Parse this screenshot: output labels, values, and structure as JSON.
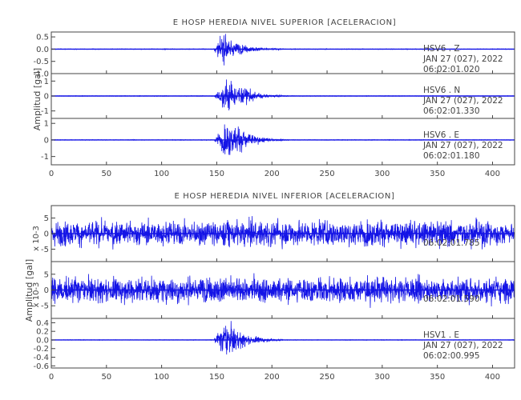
{
  "chart_data": [
    {
      "type": "line",
      "title": "E HOSP HEREDIA NIVEL SUPERIOR [ACELERACION]",
      "ylabel": "Amplitud [gal]",
      "xlabel": "",
      "xlim": [
        0,
        420
      ],
      "xticks": [
        0,
        50,
        100,
        150,
        200,
        250,
        300,
        350,
        400
      ],
      "grid": false,
      "panels": [
        {
          "station": "HSV6 . Z",
          "date": "JAN 27 (027), 2022",
          "time": "06:02:01.020",
          "ylim": [
            -1.0,
            0.7
          ],
          "yticks": [
            "0.5",
            "0.0",
            "-0.5",
            "-1.0"
          ],
          "ytick_values": [
            0.5,
            0.0,
            -0.5,
            -1.0
          ],
          "noise_amplitude": 0.02,
          "event": [
            {
              "t": 148,
              "amp": 0.1
            },
            {
              "t": 153,
              "amp": 0.45
            },
            {
              "t": 157,
              "amp": 0.65
            },
            {
              "t": 162,
              "amp": 0.55
            },
            {
              "t": 168,
              "amp": 0.3
            },
            {
              "t": 178,
              "amp": 0.15
            },
            {
              "t": 192,
              "amp": 0.06
            },
            {
              "t": 210,
              "amp": 0.02
            }
          ]
        },
        {
          "station": "HSV6 . N",
          "date": "JAN 27 (027), 2022",
          "time": "06:02:01.330",
          "ylim": [
            -1.5,
            1.5
          ],
          "yticks": [
            "1",
            "0",
            "-1"
          ],
          "ytick_values": [
            1,
            0,
            -1
          ],
          "noise_amplitude": 0.03,
          "event": [
            {
              "t": 148,
              "amp": 0.1
            },
            {
              "t": 154,
              "amp": 0.6
            },
            {
              "t": 159,
              "amp": 1.3
            },
            {
              "t": 165,
              "amp": 1.0
            },
            {
              "t": 172,
              "amp": 0.7
            },
            {
              "t": 180,
              "amp": 0.5
            },
            {
              "t": 195,
              "amp": 0.12
            },
            {
              "t": 215,
              "amp": 0.03
            }
          ]
        },
        {
          "station": "HSV6 . E",
          "date": "JAN 27 (027), 2022",
          "time": "06:02:01.180",
          "ylim": [
            -1.5,
            1.3
          ],
          "yticks": [
            "1",
            "0",
            "-1"
          ],
          "ytick_values": [
            1,
            0,
            -1
          ],
          "noise_amplitude": 0.03,
          "event": [
            {
              "t": 148,
              "amp": 0.1
            },
            {
              "t": 154,
              "amp": 0.7
            },
            {
              "t": 160,
              "amp": 1.2
            },
            {
              "t": 166,
              "amp": 0.9
            },
            {
              "t": 175,
              "amp": 0.75
            },
            {
              "t": 185,
              "amp": 0.3
            },
            {
              "t": 200,
              "amp": 0.08
            },
            {
              "t": 215,
              "amp": 0.03
            }
          ]
        }
      ]
    },
    {
      "type": "line",
      "title": "E HOSP HEREDIA NIVEL INFERIOR [ACELERACION]",
      "ylabel": "Amplitud [gal]",
      "xlabel": "",
      "xlim": [
        0,
        420
      ],
      "xticks": [
        0,
        50,
        100,
        150,
        200,
        250,
        300,
        350,
        400
      ],
      "grid": false,
      "panels": [
        {
          "station": "",
          "date": "",
          "time": "06:02:01.785",
          "scale_label": "x 10-3",
          "ylim": [
            -9,
            9
          ],
          "yticks": [
            "5",
            "0",
            "-5"
          ],
          "ytick_values": [
            5,
            0,
            -5
          ],
          "noise_amplitude": 6.5,
          "event": []
        },
        {
          "station": "",
          "date": "",
          "time": "06:02:01.590",
          "scale_label": "x 10-3",
          "ylim": [
            -9,
            9
          ],
          "yticks": [
            "5",
            "0",
            "-5"
          ],
          "ytick_values": [
            5,
            0,
            -5
          ],
          "noise_amplitude": 6.5,
          "event": []
        },
        {
          "station": "HSV1 . E",
          "date": "JAN 27 (027), 2022",
          "time": "06:02:00.995",
          "ylim": [
            -0.65,
            0.5
          ],
          "yticks": [
            "0.4",
            "0.2",
            "0.0",
            "-0.2",
            "-0.4",
            "-0.6"
          ],
          "ytick_values": [
            0.4,
            0.2,
            0.0,
            -0.2,
            -0.4,
            -0.6
          ],
          "noise_amplitude": 0.01,
          "event": [
            {
              "t": 148,
              "amp": 0.05
            },
            {
              "t": 153,
              "amp": 0.25
            },
            {
              "t": 158,
              "amp": 0.55
            },
            {
              "t": 163,
              "amp": 0.4
            },
            {
              "t": 170,
              "amp": 0.25
            },
            {
              "t": 180,
              "amp": 0.12
            },
            {
              "t": 195,
              "amp": 0.05
            },
            {
              "t": 210,
              "amp": 0.015
            }
          ]
        }
      ]
    }
  ],
  "colors": {
    "trace": "#1414e6",
    "axes": "#444444",
    "annotation": "#555555",
    "background": "#ffffff"
  }
}
